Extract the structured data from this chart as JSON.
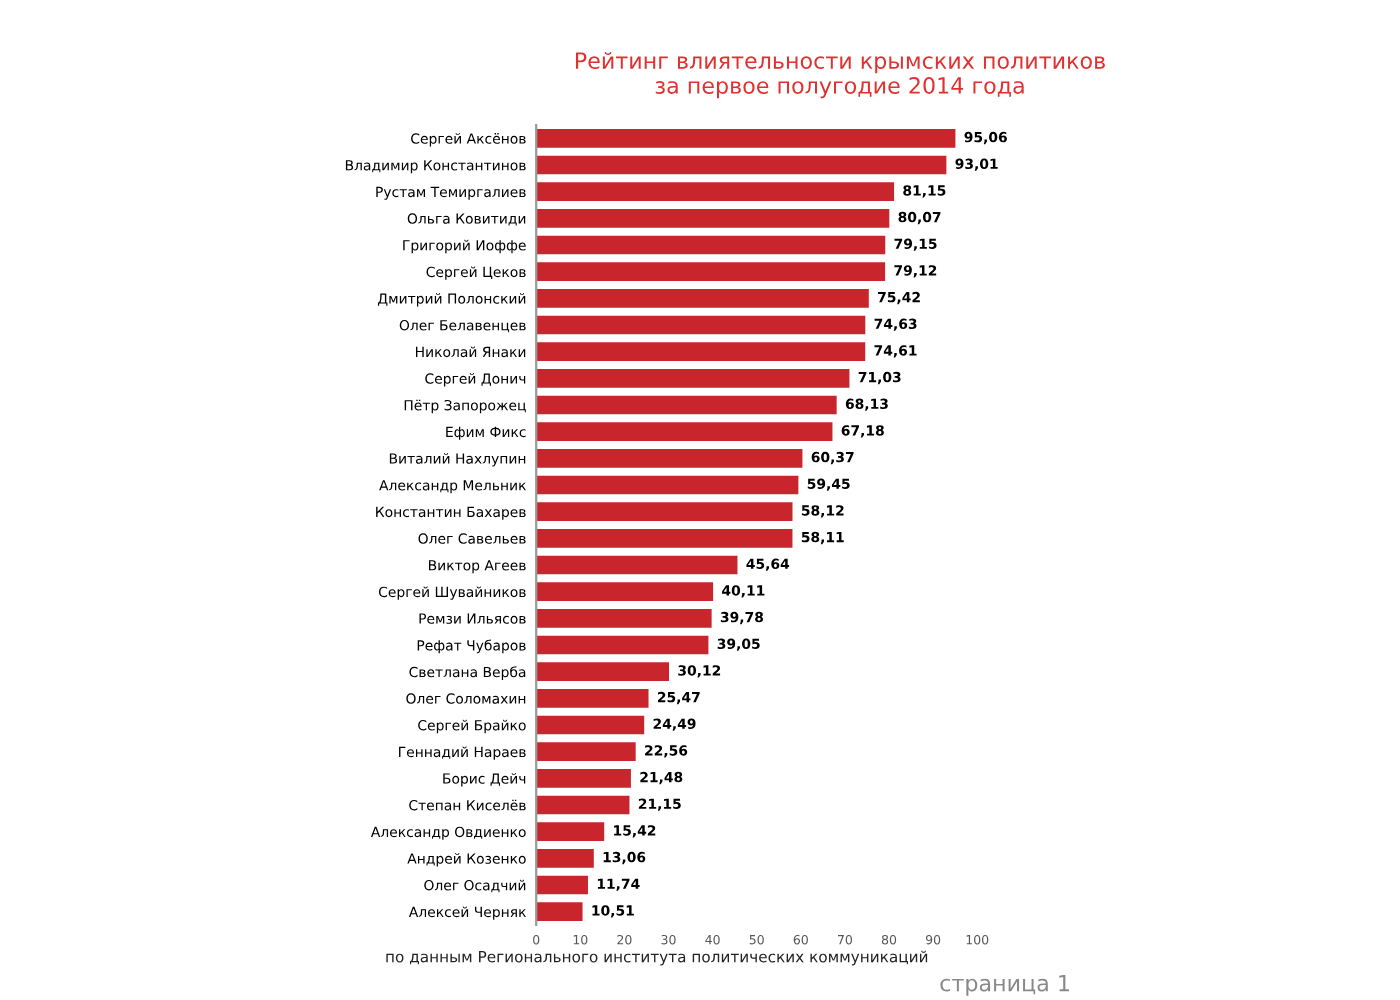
{
  "chart_data": {
    "type": "bar",
    "orientation": "horizontal",
    "title": "Рейтинг влиятельности крымских политиков\nза первое полугодие 2014 года",
    "categories": [
      "Сергей Аксёнов",
      "Владимир Константинов",
      "Рустам Темиргалиев",
      "Ольга Ковитиди",
      "Григорий Иоффе",
      "Сергей Цеков",
      "Дмитрий Полонский",
      "Олег Белавенцев",
      "Николай Янаки",
      "Сергей Донич",
      "Пётр Запорожец",
      "Ефим Фикс",
      "Виталий Нахлупин",
      "Александр Мельник",
      "Константин Бахарев",
      "Олег Савельев",
      "Виктор Агеев",
      "Сергей Шувайников",
      "Ремзи Ильясов",
      "Рефат Чубаров",
      "Светлана Верба",
      "Олег Соломахин",
      "Сергей Брайко",
      "Геннадий Нараев",
      "Борис Дейч",
      "Степан Киселёв",
      "Александр Овдиенко",
      "Андрей Козенко",
      "Олег Осадчий",
      "Алексей Черняк"
    ],
    "values": [
      95.06,
      93.01,
      81.15,
      80.07,
      79.15,
      79.12,
      75.42,
      74.63,
      74.61,
      71.03,
      68.13,
      67.18,
      60.37,
      59.45,
      58.12,
      58.11,
      45.64,
      40.11,
      39.78,
      39.05,
      30.12,
      25.47,
      24.49,
      22.56,
      21.48,
      21.15,
      15.42,
      13.06,
      11.74,
      10.51
    ],
    "value_labels": [
      "95,06",
      "93,01",
      "81,15",
      "80,07",
      "79,15",
      "79,12",
      "75,42",
      "74,63",
      "74,61",
      "71,03",
      "68,13",
      "67,18",
      "60,37",
      "59,45",
      "58,12",
      "58,11",
      "45,64",
      "40,11",
      "39,78",
      "39,05",
      "30,12",
      "25,47",
      "24,49",
      "22,56",
      "21,48",
      "21,15",
      "15,42",
      "13,06",
      "11,74",
      "10,51"
    ],
    "color": "#c8262c",
    "xlim": [
      0,
      100
    ],
    "xticks": [
      0,
      10,
      20,
      30,
      40,
      50,
      60,
      70,
      80,
      90,
      100
    ],
    "grid": false,
    "legend": false,
    "annotations": [
      "по данным Регионального института политических коммуникаций",
      "страница 1"
    ]
  }
}
